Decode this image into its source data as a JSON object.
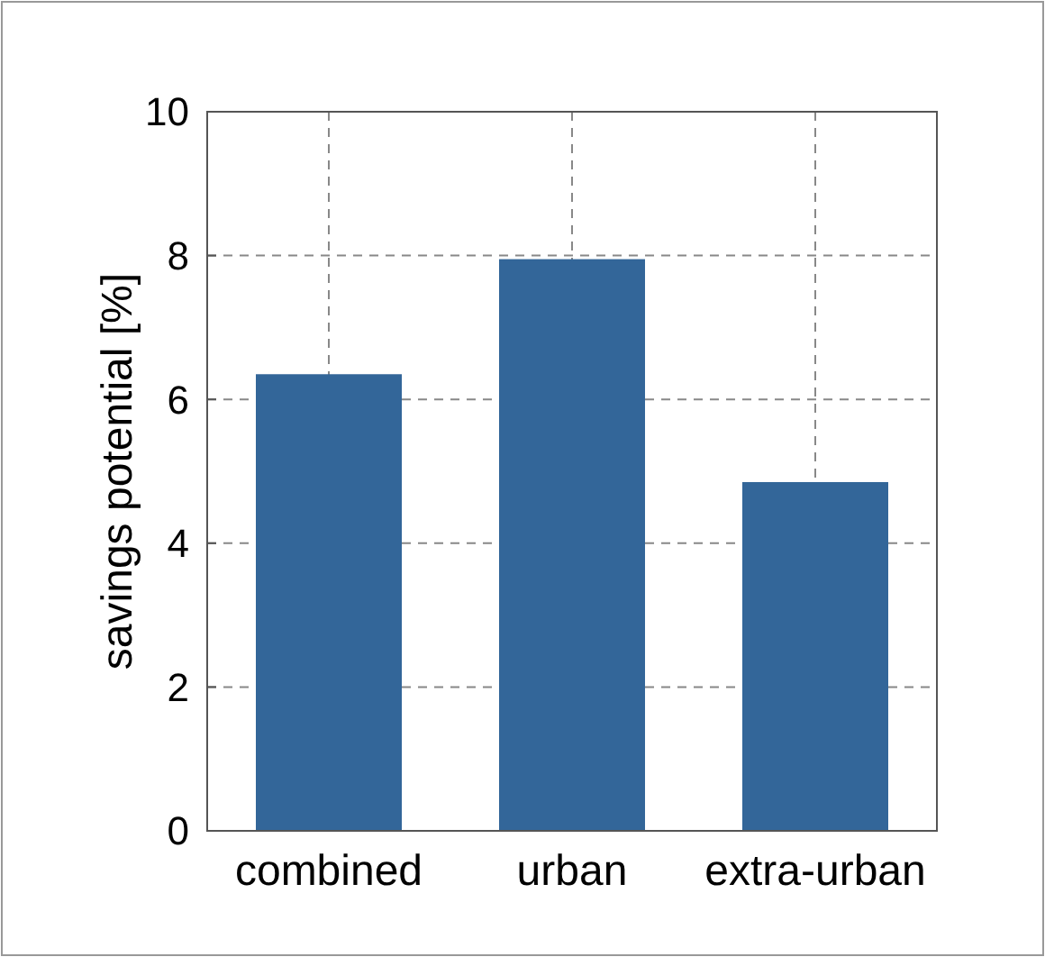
{
  "chart_data": {
    "type": "bar",
    "ylabel": "savings potential [%]",
    "categories": [
      "combined",
      "urban",
      "extra-urban"
    ],
    "values": [
      6.35,
      7.95,
      4.85
    ],
    "color": "#336699",
    "ylim": [
      0,
      10
    ],
    "yticks": [
      0,
      2,
      4,
      6,
      8,
      10
    ],
    "grid": true
  }
}
